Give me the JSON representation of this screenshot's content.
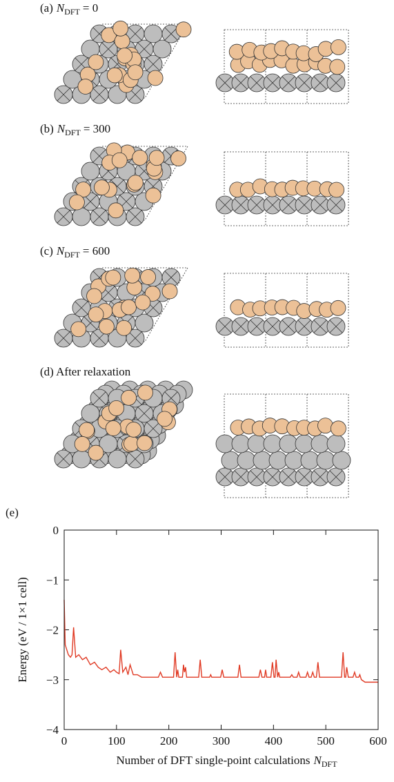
{
  "panels": [
    {
      "label": "(a)",
      "variable": "N",
      "subscript": "DFT",
      "rest": "= 0"
    },
    {
      "label": "(b)",
      "variable": "N",
      "subscript": "DFT",
      "rest": "= 300"
    },
    {
      "label": "(c)",
      "variable": "N",
      "subscript": "DFT",
      "rest": "= 600"
    },
    {
      "label": "(d) After relaxation"
    }
  ],
  "chart_data": {
    "type": "line",
    "panel_label": "(e)",
    "x_label": "Number of DFT single-point calculations",
    "x_label_variable": "N",
    "x_label_subscript": "DFT",
    "y_label": "Energy (eV / 1×1 cell)",
    "xlim": [
      0,
      600
    ],
    "xticks": [
      0,
      100,
      200,
      300,
      400,
      500,
      600
    ],
    "ylim": [
      -4,
      0
    ],
    "yticks": [
      0,
      {
        "value": -1,
        "label": "−1"
      },
      {
        "value": -2,
        "label": "−2"
      },
      {
        "value": -3,
        "label": "−3"
      },
      {
        "value": -4,
        "label": "−4"
      }
    ],
    "grid": false,
    "series": [
      {
        "color": "#e03a24",
        "x": [
          0,
          2,
          5,
          8,
          12,
          15,
          18,
          22,
          28,
          35,
          42,
          50,
          58,
          65,
          72,
          80,
          88,
          95,
          100,
          105,
          108,
          112,
          118,
          122,
          126,
          132,
          140,
          148,
          180,
          184,
          188,
          209,
          212,
          215,
          217,
          219,
          221,
          226,
          228,
          230,
          232,
          234,
          257,
          260,
          263,
          278,
          280,
          282,
          299,
          302,
          305,
          332,
          335,
          338,
          372,
          375,
          378,
          383,
          385,
          387,
          395,
          398,
          401,
          403,
          405,
          408,
          410,
          412,
          432,
          435,
          438,
          445,
          448,
          451,
          462,
          465,
          468,
          472,
          475,
          478,
          482,
          485,
          488,
          530,
          533,
          536,
          538,
          540,
          543,
          552,
          555,
          558,
          563,
          565,
          568,
          575,
          600
        ],
        "values": [
          -1.4,
          -2.3,
          -2.4,
          -2.5,
          -2.55,
          -2.5,
          -1.95,
          -2.55,
          -2.5,
          -2.6,
          -2.55,
          -2.7,
          -2.65,
          -2.75,
          -2.8,
          -2.75,
          -2.85,
          -2.8,
          -2.85,
          -2.88,
          -2.4,
          -2.85,
          -2.75,
          -2.9,
          -2.7,
          -2.9,
          -2.9,
          -2.95,
          -2.95,
          -2.85,
          -2.95,
          -2.95,
          -2.45,
          -2.95,
          -2.8,
          -2.95,
          -2.95,
          -2.95,
          -2.7,
          -2.85,
          -2.75,
          -2.95,
          -2.95,
          -2.6,
          -2.95,
          -2.95,
          -2.9,
          -2.95,
          -2.95,
          -2.8,
          -2.95,
          -2.95,
          -2.7,
          -2.95,
          -2.95,
          -2.8,
          -2.95,
          -2.95,
          -2.8,
          -2.95,
          -2.95,
          -2.65,
          -2.95,
          -2.95,
          -2.6,
          -2.95,
          -2.85,
          -2.95,
          -2.95,
          -2.9,
          -2.95,
          -2.95,
          -2.85,
          -2.95,
          -2.95,
          -2.85,
          -2.95,
          -2.95,
          -2.85,
          -2.95,
          -2.95,
          -2.65,
          -2.95,
          -2.95,
          -2.45,
          -2.95,
          -2.95,
          -2.75,
          -2.95,
          -2.95,
          -2.85,
          -2.95,
          -2.95,
          -2.9,
          -3.0,
          -3.05,
          -3.05
        ]
      }
    ]
  }
}
